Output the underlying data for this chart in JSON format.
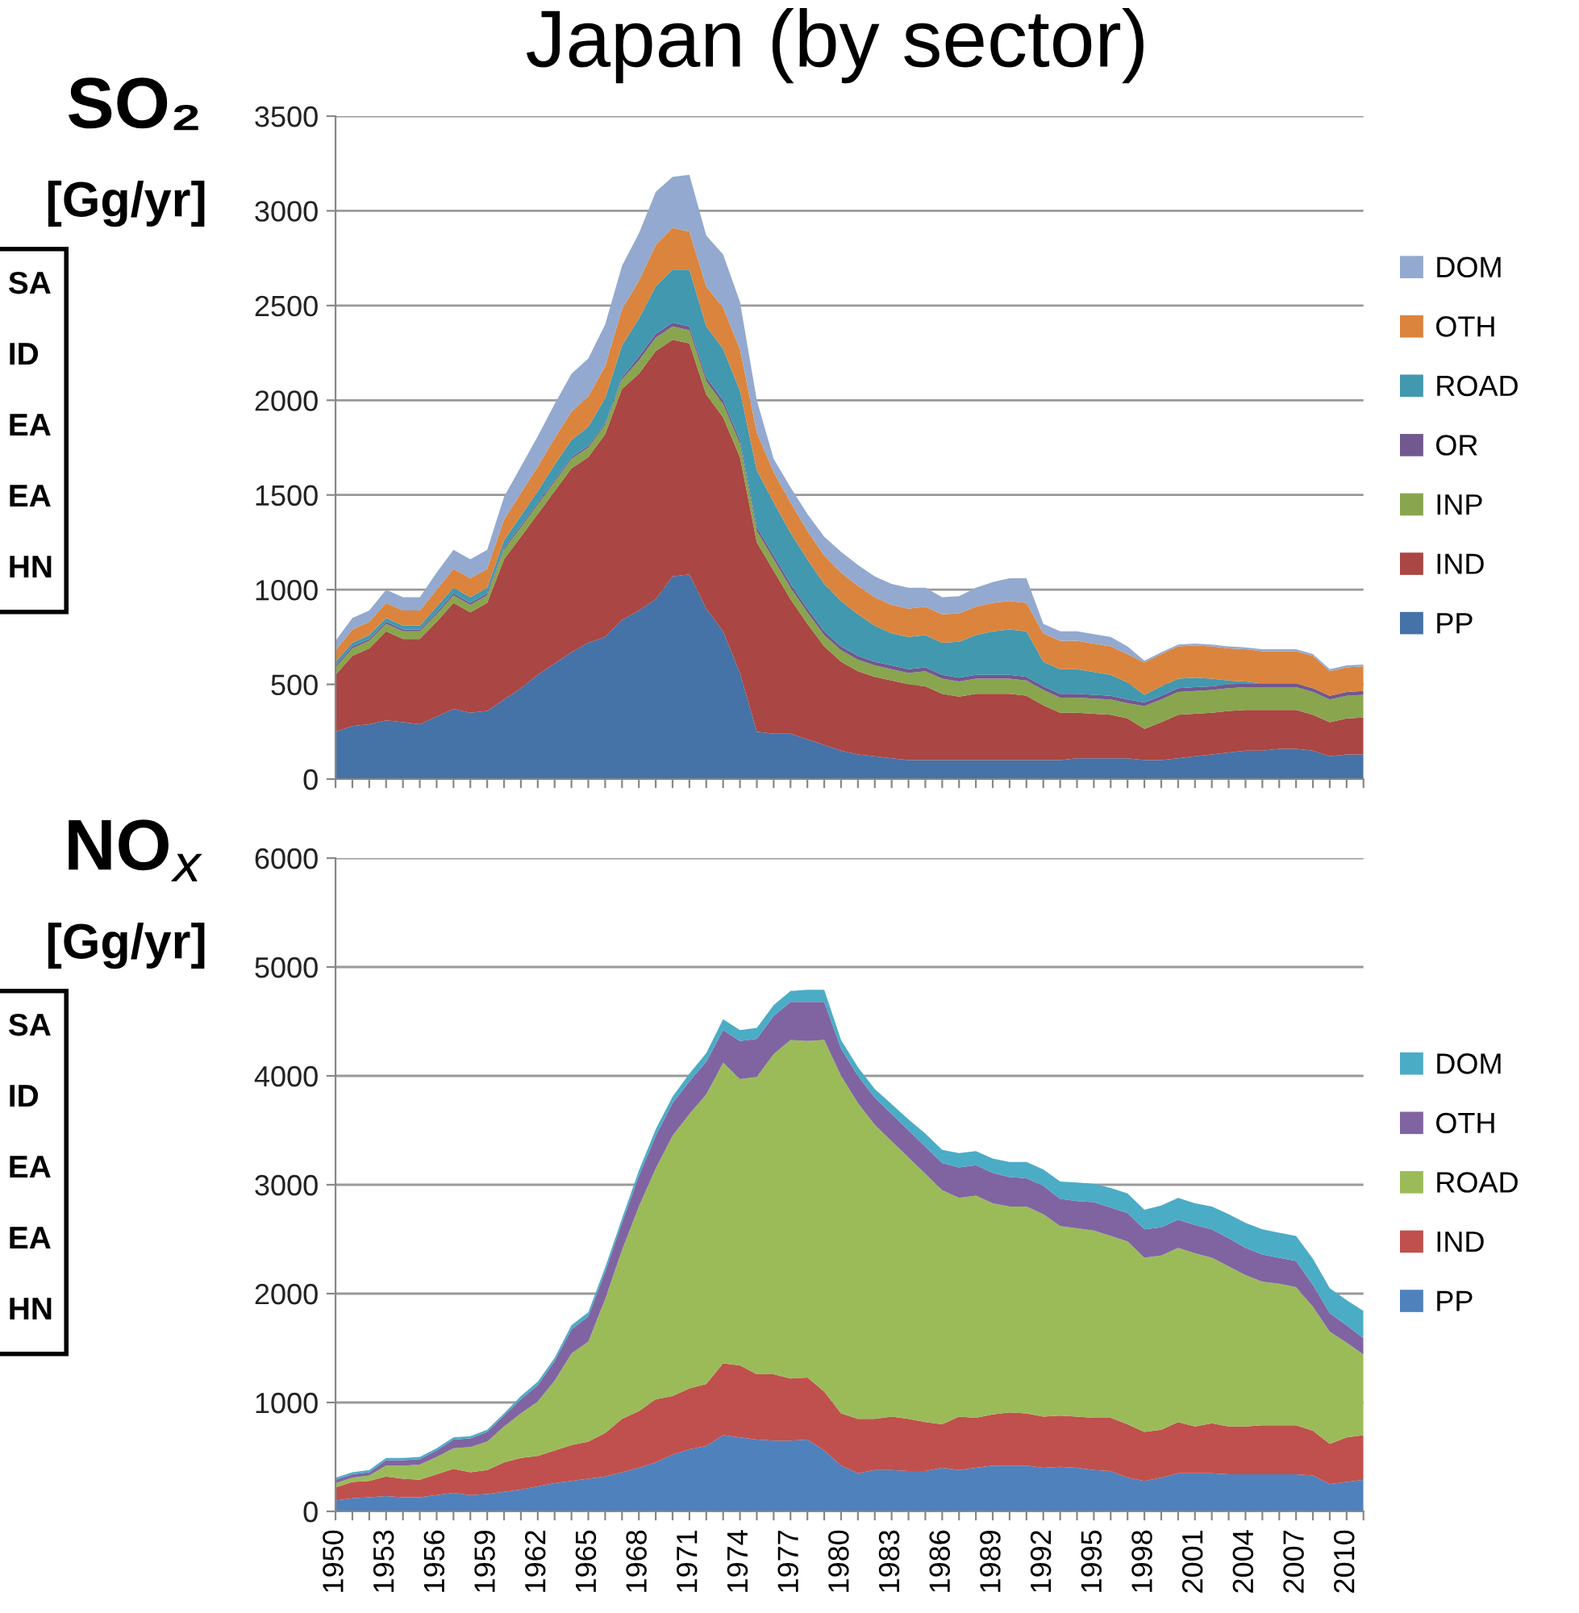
{
  "chart_data": [
    {
      "type": "area",
      "stacked": true,
      "title": "Japan (by sector)",
      "ylabel": "SO₂\n[Gg/yr]",
      "tick_labels": "y",
      "categories": [
        "1950",
        null,
        null,
        "1953",
        null,
        null,
        "1956",
        null,
        null,
        "1959",
        null,
        null,
        "1962",
        null,
        null,
        "1965",
        null,
        null,
        "1968",
        null,
        null,
        "1971",
        null,
        null,
        "1974",
        null,
        null,
        "1977",
        null,
        null,
        "1980",
        null,
        null,
        "1983",
        null,
        null,
        "1986",
        null,
        null,
        "1989",
        null,
        null,
        "1992",
        null,
        null,
        "1995",
        null,
        null,
        "1998",
        null,
        null,
        "2001",
        null,
        null,
        "2004",
        null,
        null,
        "2007",
        null,
        null,
        "2010",
        null
      ],
      "ylim": [
        0,
        3500
      ],
      "yticks": [
        0,
        500,
        1000,
        1500,
        2000,
        2500,
        3000,
        3500
      ],
      "grid": "y",
      "legend": "right",
      "series": [
        {
          "name": "PP",
          "color": "#4572a7",
          "values": [
            250,
            280,
            290,
            310,
            300,
            290,
            330,
            370,
            350,
            360,
            420,
            480,
            550,
            610,
            670,
            720,
            750,
            840,
            890,
            950,
            1070,
            1080,
            900,
            780,
            560,
            250,
            240,
            240,
            210,
            180,
            150,
            130,
            120,
            110,
            100,
            100,
            100,
            100,
            100,
            100,
            100,
            100,
            100,
            100,
            110,
            110,
            110,
            110,
            100,
            100,
            110,
            120,
            130,
            140,
            150,
            150,
            160,
            160,
            150,
            120,
            130,
            130
          ]
        },
        {
          "name": "IND",
          "color": "#aa4643",
          "values": [
            300,
            370,
            400,
            470,
            440,
            450,
            500,
            560,
            530,
            570,
            740,
            800,
            850,
            910,
            970,
            980,
            1070,
            1220,
            1250,
            1310,
            1250,
            1220,
            1130,
            1130,
            1140,
            1000,
            860,
            710,
            610,
            520,
            470,
            440,
            420,
            410,
            400,
            390,
            350,
            335,
            350,
            350,
            350,
            340,
            290,
            250,
            240,
            235,
            230,
            210,
            165,
            200,
            230,
            225,
            220,
            220,
            215,
            215,
            205,
            205,
            190,
            180,
            190,
            195
          ]
        },
        {
          "name": "INP",
          "color": "#89a54e",
          "values": [
            40,
            40,
            40,
            40,
            40,
            40,
            40,
            40,
            40,
            40,
            50,
            50,
            50,
            50,
            50,
            50,
            50,
            50,
            70,
            70,
            70,
            70,
            70,
            70,
            70,
            60,
            60,
            60,
            60,
            60,
            60,
            60,
            60,
            60,
            60,
            80,
            80,
            80,
            80,
            80,
            80,
            80,
            80,
            80,
            80,
            80,
            80,
            80,
            120,
            120,
            120,
            120,
            120,
            120,
            120,
            120,
            120,
            120,
            120,
            120,
            120,
            120
          ]
        },
        {
          "name": "OR",
          "color": "#71588f",
          "values": [
            10,
            10,
            10,
            10,
            10,
            10,
            10,
            10,
            10,
            10,
            10,
            10,
            10,
            10,
            10,
            10,
            10,
            10,
            20,
            20,
            20,
            20,
            20,
            20,
            20,
            20,
            20,
            20,
            20,
            20,
            20,
            20,
            20,
            20,
            20,
            20,
            20,
            20,
            20,
            20,
            20,
            20,
            20,
            20,
            20,
            20,
            20,
            20,
            20,
            20,
            20,
            20,
            20,
            20,
            20,
            20,
            20,
            20,
            20,
            20,
            20,
            20
          ]
        },
        {
          "name": "ROAD",
          "color": "#4198af",
          "values": [
            20,
            20,
            20,
            20,
            20,
            20,
            30,
            30,
            30,
            30,
            40,
            50,
            60,
            80,
            90,
            100,
            130,
            170,
            200,
            250,
            280,
            300,
            270,
            270,
            260,
            300,
            280,
            270,
            260,
            250,
            240,
            220,
            190,
            170,
            170,
            170,
            170,
            190,
            210,
            230,
            240,
            240,
            130,
            130,
            130,
            120,
            110,
            90,
            40,
            50,
            50,
            50,
            40,
            20,
            10,
            0,
            0,
            0,
            0,
            0,
            0,
            0
          ]
        },
        {
          "name": "OTH",
          "color": "#db843d",
          "values": [
            60,
            70,
            70,
            80,
            80,
            80,
            90,
            100,
            100,
            100,
            110,
            120,
            130,
            140,
            150,
            160,
            170,
            190,
            200,
            220,
            220,
            200,
            210,
            220,
            220,
            200,
            160,
            160,
            150,
            150,
            150,
            150,
            150,
            150,
            150,
            150,
            150,
            150,
            150,
            150,
            150,
            150,
            150,
            150,
            150,
            150,
            150,
            150,
            170,
            170,
            170,
            170,
            170,
            170,
            170,
            170,
            170,
            170,
            170,
            130,
            130,
            130
          ]
        },
        {
          "name": "DOM",
          "color": "#93a9cf",
          "values": [
            50,
            60,
            60,
            70,
            70,
            70,
            90,
            100,
            100,
            100,
            120,
            140,
            160,
            180,
            200,
            200,
            220,
            230,
            250,
            280,
            270,
            300,
            270,
            280,
            250,
            170,
            70,
            80,
            90,
            100,
            110,
            110,
            110,
            110,
            110,
            100,
            90,
            90,
            100,
            110,
            120,
            130,
            50,
            50,
            50,
            50,
            50,
            40,
            10,
            10,
            10,
            10,
            10,
            10,
            10,
            10,
            10,
            10,
            10,
            10,
            10,
            10
          ]
        }
      ],
      "annotations": [
        "SA",
        "ID",
        "EA",
        "EA",
        "HN"
      ]
    },
    {
      "type": "area",
      "stacked": true,
      "ylabel": "NO$_{x}$\n[Gg/yr]",
      "categories": [
        "1950",
        null,
        null,
        "1953",
        null,
        null,
        "1956",
        null,
        null,
        "1959",
        null,
        null,
        "1962",
        null,
        null,
        "1965",
        null,
        null,
        "1968",
        null,
        null,
        "1971",
        null,
        null,
        "1974",
        null,
        null,
        "1977",
        null,
        null,
        "1980",
        null,
        null,
        "1983",
        null,
        null,
        "1986",
        null,
        null,
        "1989",
        null,
        null,
        "1992",
        null,
        null,
        "1995",
        null,
        null,
        "1998",
        null,
        null,
        "2001",
        null,
        null,
        "2004",
        null,
        null,
        "2007",
        null,
        null,
        "2010",
        null
      ],
      "ylim": [
        0,
        6000
      ],
      "yticks": [
        0,
        1000,
        2000,
        3000,
        4000,
        5000,
        6000
      ],
      "grid": "y",
      "legend": "right",
      "series": [
        {
          "name": "PP",
          "color": "#4f81bd",
          "values": [
            100,
            120,
            130,
            140,
            130,
            130,
            150,
            170,
            150,
            160,
            180,
            200,
            230,
            260,
            280,
            300,
            320,
            360,
            400,
            450,
            520,
            570,
            600,
            700,
            680,
            660,
            650,
            650,
            660,
            560,
            420,
            350,
            380,
            380,
            370,
            370,
            400,
            380,
            400,
            420,
            420,
            420,
            400,
            410,
            400,
            380,
            370,
            310,
            280,
            310,
            350,
            350,
            350,
            340,
            340,
            340,
            340,
            340,
            330,
            250,
            270,
            290
          ]
        },
        {
          "name": "IND",
          "color": "#c0504d",
          "values": [
            120,
            150,
            150,
            180,
            170,
            160,
            190,
            220,
            210,
            220,
            270,
            290,
            280,
            300,
            330,
            340,
            400,
            490,
            520,
            580,
            540,
            560,
            570,
            660,
            660,
            600,
            610,
            570,
            570,
            540,
            480,
            500,
            470,
            490,
            480,
            450,
            400,
            490,
            460,
            470,
            490,
            480,
            470,
            470,
            470,
            480,
            490,
            490,
            450,
            440,
            470,
            430,
            460,
            440,
            440,
            450,
            450,
            450,
            410,
            370,
            410,
            410
          ]
        },
        {
          "name": "ROAD",
          "color": "#9bbb59",
          "values": [
            40,
            40,
            50,
            100,
            120,
            140,
            160,
            190,
            230,
            260,
            330,
            410,
            500,
            640,
            840,
            920,
            1230,
            1550,
            1880,
            2120,
            2390,
            2520,
            2660,
            2760,
            2630,
            2730,
            2940,
            3110,
            3090,
            3230,
            3100,
            2900,
            2700,
            2530,
            2400,
            2280,
            2150,
            2010,
            2040,
            1940,
            1890,
            1900,
            1860,
            1740,
            1730,
            1720,
            1670,
            1680,
            1600,
            1600,
            1600,
            1590,
            1520,
            1470,
            1390,
            1320,
            1300,
            1270,
            1140,
            1030,
            870,
            740
          ]
        },
        {
          "name": "OTH",
          "color": "#8064a2",
          "values": [
            30,
            30,
            30,
            50,
            50,
            50,
            60,
            80,
            80,
            90,
            100,
            130,
            150,
            180,
            220,
            230,
            250,
            250,
            280,
            300,
            300,
            300,
            300,
            300,
            350,
            350,
            350,
            350,
            360,
            350,
            250,
            250,
            250,
            250,
            250,
            250,
            250,
            280,
            280,
            280,
            270,
            260,
            260,
            250,
            250,
            260,
            260,
            260,
            260,
            260,
            260,
            260,
            260,
            260,
            250,
            250,
            240,
            240,
            200,
            170,
            160,
            150
          ]
        },
        {
          "name": "DOM",
          "color": "#4bacc6",
          "values": [
            20,
            20,
            20,
            20,
            20,
            20,
            20,
            20,
            20,
            20,
            20,
            30,
            30,
            30,
            40,
            40,
            40,
            40,
            50,
            60,
            60,
            70,
            80,
            100,
            100,
            100,
            100,
            100,
            110,
            110,
            80,
            80,
            80,
            90,
            100,
            120,
            120,
            130,
            130,
            130,
            140,
            150,
            150,
            160,
            170,
            170,
            180,
            180,
            180,
            200,
            200,
            200,
            210,
            220,
            230,
            230,
            230,
            230,
            240,
            230,
            230,
            250
          ]
        }
      ],
      "annotations": [
        "SA",
        "ID",
        "EA",
        "EA",
        "HN"
      ]
    }
  ]
}
